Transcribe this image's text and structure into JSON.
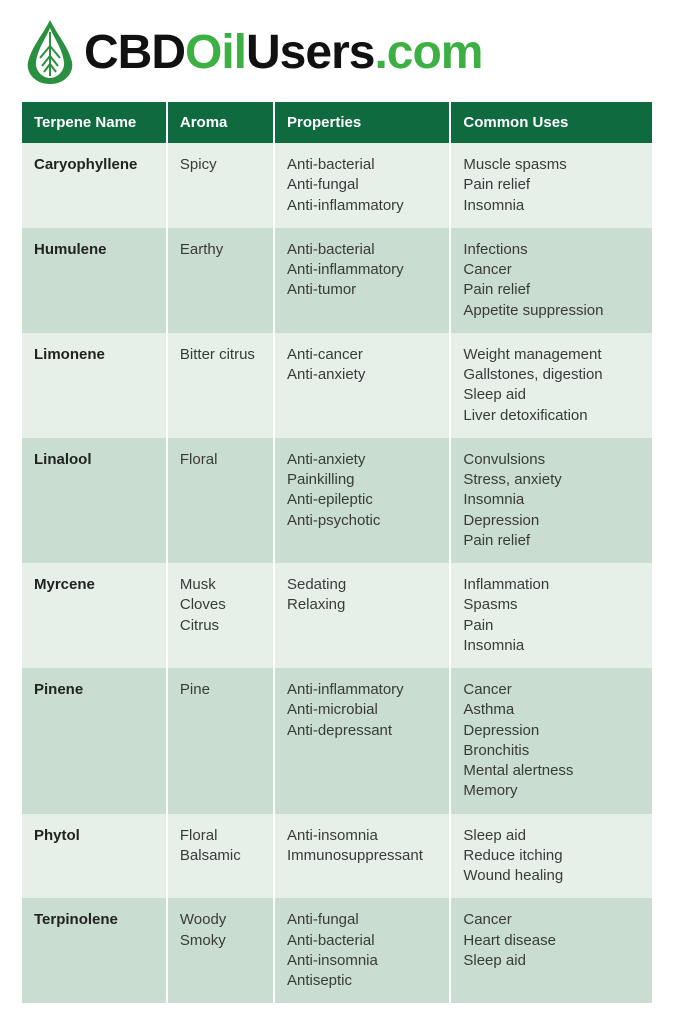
{
  "brand": {
    "part1": "CBD",
    "part2": "Oil",
    "part3": "Users",
    "part4": ".com"
  },
  "colors": {
    "header_bg": "#0f6b3f",
    "row_odd": "#e6f0e9",
    "row_even": "#c9ddd0",
    "brand_green": "#3cb043",
    "text": "#333333",
    "leaf_fill": "#2a8f3e",
    "leaf_veins": "#ffffff"
  },
  "table": {
    "columns": [
      {
        "label": "Terpene Name",
        "width": "23%"
      },
      {
        "label": "Aroma",
        "width": "17%"
      },
      {
        "label": "Properties",
        "width": "28%"
      },
      {
        "label": "Common Uses",
        "width": "32%"
      }
    ],
    "rows": [
      {
        "name": "Caryophyllene",
        "aroma": [
          "Spicy"
        ],
        "properties": [
          "Anti-bacterial",
          "Anti-fungal",
          "Anti-inflammatory"
        ],
        "uses": [
          "Muscle spasms",
          "Pain relief",
          "Insomnia"
        ]
      },
      {
        "name": "Humulene",
        "aroma": [
          "Earthy"
        ],
        "properties": [
          "Anti-bacterial",
          "Anti-inflammatory",
          "Anti-tumor"
        ],
        "uses": [
          "Infections",
          "Cancer",
          "Pain relief",
          "Appetite suppression"
        ]
      },
      {
        "name": "Limonene",
        "aroma": [
          "Bitter citrus"
        ],
        "properties": [
          "Anti-cancer",
          "Anti-anxiety"
        ],
        "uses": [
          "Weight management",
          "Gallstones, digestion",
          "Sleep aid",
          "Liver detoxification"
        ]
      },
      {
        "name": "Linalool",
        "aroma": [
          "Floral"
        ],
        "properties": [
          "Anti-anxiety",
          "Painkilling",
          "Anti-epileptic",
          "Anti-psychotic"
        ],
        "uses": [
          "Convulsions",
          "Stress, anxiety",
          "Insomnia",
          "Depression",
          "Pain relief"
        ]
      },
      {
        "name": "Myrcene",
        "aroma": [
          "Musk",
          "Cloves",
          "Citrus"
        ],
        "properties": [
          "Sedating",
          "Relaxing"
        ],
        "uses": [
          "Inflammation",
          "Spasms",
          "Pain",
          "Insomnia"
        ]
      },
      {
        "name": "Pinene",
        "aroma": [
          "Pine"
        ],
        "properties": [
          "Anti-inflammatory",
          "Anti-microbial",
          "Anti-depressant"
        ],
        "uses": [
          "Cancer",
          "Asthma",
          "Depression",
          "Bronchitis",
          "Mental alertness",
          "Memory"
        ]
      },
      {
        "name": "Phytol",
        "aroma": [
          "Floral",
          "Balsamic"
        ],
        "properties": [
          "Anti-insomnia",
          "Immunosuppressant"
        ],
        "uses": [
          "Sleep aid",
          "Reduce itching",
          "Wound healing"
        ]
      },
      {
        "name": "Terpinolene",
        "aroma": [
          "Woody",
          "Smoky"
        ],
        "properties": [
          "Anti-fungal",
          "Anti-bacterial",
          "Anti-insomnia",
          "Antiseptic"
        ],
        "uses": [
          "Cancer",
          "Heart disease",
          "Sleep aid"
        ]
      }
    ]
  }
}
